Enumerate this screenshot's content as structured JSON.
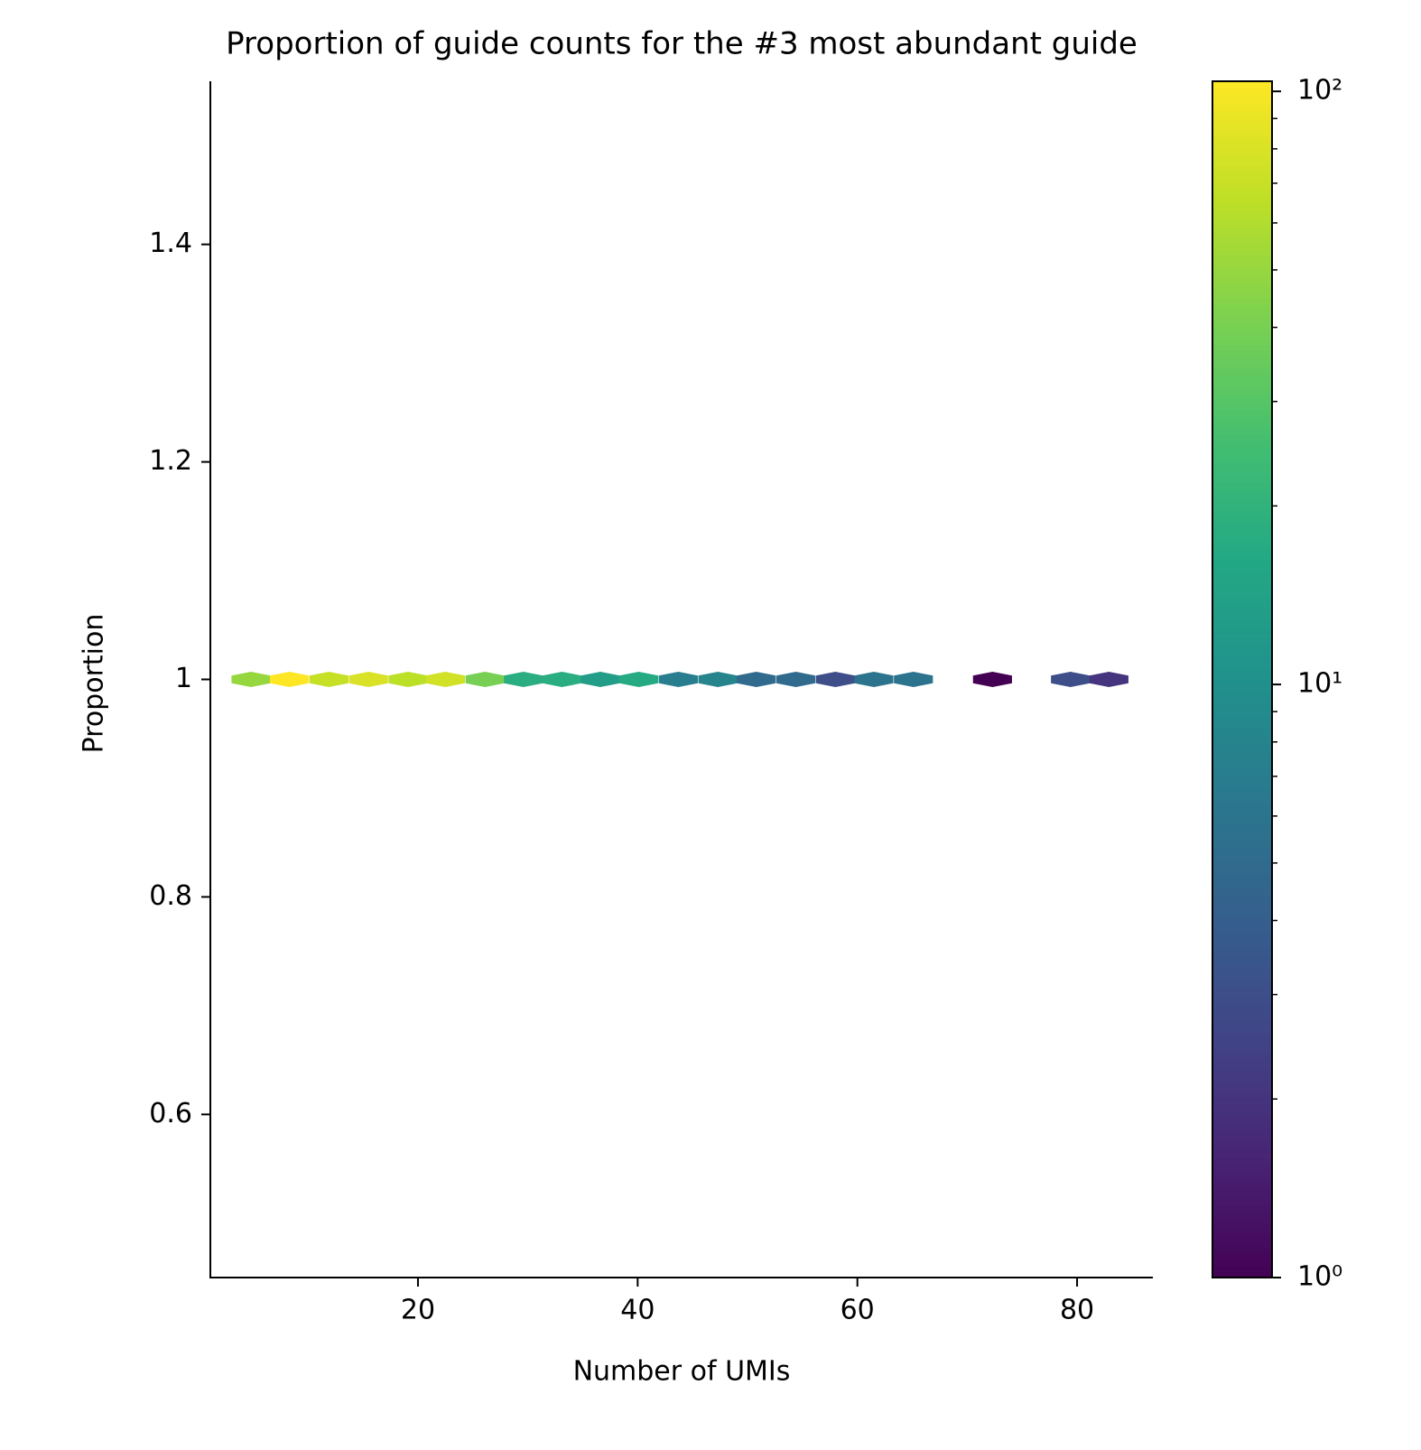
{
  "chart_data": {
    "type": "hexbin",
    "title": "Proportion of guide counts for the #3 most abundant guide",
    "x_label": "Number of UMIs",
    "y_label": "Proportion",
    "x": [
      4.8,
      8.3,
      11.9,
      15.5,
      19.1,
      22.5,
      26.1,
      29.6,
      33.1,
      36.6,
      40.1,
      43.7,
      47.3,
      50.8,
      54.4,
      58.0,
      61.5,
      65.1,
      72.3,
      79.4,
      82.9
    ],
    "y": [
      1.0,
      1.0,
      1.0,
      1.0,
      1.0,
      1.0,
      1.0,
      1.0,
      1.0,
      1.0,
      1.0,
      1.0,
      1.0,
      1.0,
      1.0,
      1.0,
      1.0,
      1.0,
      1.0,
      1.0,
      1.0
    ],
    "counts": [
      50,
      104,
      70,
      80,
      65,
      75,
      40,
      18,
      18,
      13,
      17,
      7,
      8,
      5,
      5,
      3,
      6,
      6,
      1,
      3,
      2
    ],
    "xlim": [
      1.1,
      86.9
    ],
    "xticks": [
      20,
      40,
      60,
      80
    ],
    "ylim": [
      0.45,
      1.55
    ],
    "yticks": [
      0.6,
      0.8,
      1.0,
      1.2,
      1.4
    ],
    "colormap": "viridis",
    "color_scale": "log",
    "clim": [
      1,
      104
    ],
    "cticks": [
      {
        "value": 1,
        "label": "10⁰"
      },
      {
        "value": 10,
        "label": "10¹"
      },
      {
        "value": 100,
        "label": "10²"
      }
    ],
    "cticks_minor": [
      2,
      3,
      4,
      5,
      6,
      7,
      8,
      9,
      20,
      30,
      40,
      50,
      60,
      70,
      80,
      90
    ]
  }
}
